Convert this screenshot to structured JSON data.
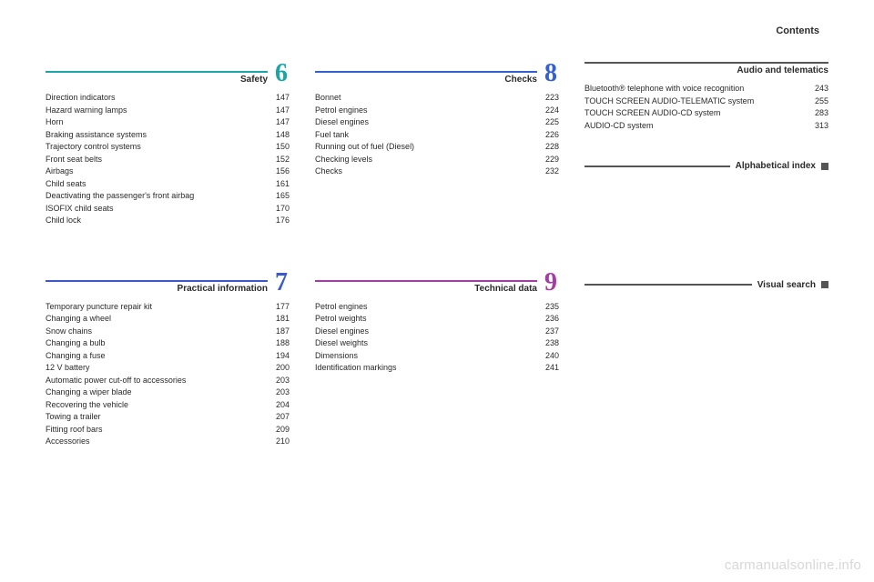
{
  "header": {
    "label": "Contents"
  },
  "colors": {
    "c6": "#1aa6a6",
    "c7": "#3b59c9",
    "c8": "#335fd1",
    "c9": "#a33fa3",
    "dark": "#555555"
  },
  "row1": {
    "col1": {
      "num": "6",
      "title": "Safety",
      "entriesA": [
        "Direction indicators",
        "Hazard warning lamps",
        "Horn",
        "Braking assistance systems",
        "Trajectory control systems",
        "Front seat belts",
        "Airbags",
        "Child seats",
        "Deactivating the passenger's front airbag",
        "ISOFIX child seats",
        "Child lock"
      ],
      "entriesB": [
        "147",
        "147",
        "147",
        "148",
        "150",
        "152",
        "156",
        "161",
        "165",
        "170",
        "176"
      ]
    },
    "col2": {
      "num": "8",
      "title": "Checks",
      "entriesA": [
        "Bonnet",
        "Petrol engines",
        "Diesel engines",
        "Fuel tank",
        "Running out of fuel (Diesel)",
        "Checking levels",
        "Checks"
      ],
      "entriesB": [
        "223",
        "224",
        "225",
        "226",
        "228",
        "229",
        "232"
      ]
    },
    "col3": {
      "title": "Audio and telematics",
      "entriesA": [
        "Bluetooth® telephone\nwith voice recognition",
        "TOUCH SCREEN AUDIO-TELEMATIC system",
        "TOUCH SCREEN AUDIO-CD system",
        "AUDIO-CD system"
      ],
      "entriesB": [
        "243",
        "255",
        "283",
        "313"
      ],
      "label2": "Alphabetical index"
    }
  },
  "row2": {
    "col1": {
      "num": "7",
      "title": "Practical information",
      "entriesA": [
        "Temporary puncture repair kit",
        "Changing a wheel",
        "Snow chains",
        "Changing a bulb",
        "Changing a fuse",
        "12 V battery",
        "Automatic power cut-off to accessories",
        "Changing a wiper blade",
        "Recovering the vehicle",
        "Towing a trailer",
        "Fitting roof bars",
        "Accessories"
      ],
      "entriesB": [
        "177",
        "181",
        "187",
        "188",
        "194",
        "200",
        "203",
        "203",
        "204",
        "207",
        "209",
        "210"
      ]
    },
    "col2": {
      "num": "9",
      "title": "Technical data",
      "entriesA": [
        "Petrol engines",
        "Petrol weights",
        "Diesel engines",
        "Diesel weights",
        "Dimensions",
        "Identification markings"
      ],
      "entriesB": [
        "235",
        "236",
        "237",
        "238",
        "240",
        "241"
      ]
    },
    "col3": {
      "title": "Visual search"
    }
  },
  "watermark": "carmanualsonline.info"
}
